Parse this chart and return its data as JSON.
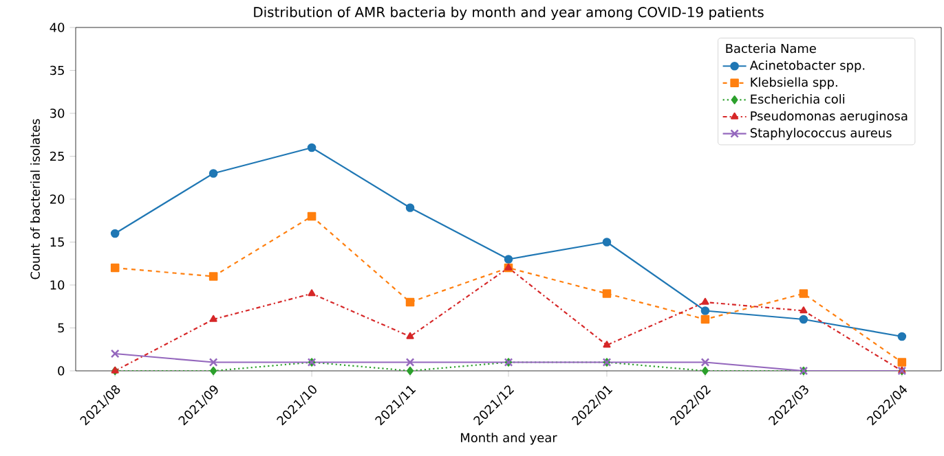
{
  "chart_data": {
    "type": "line",
    "title": "Distribution of AMR bacteria by month and year among COVID-19 patients",
    "xlabel": "Month and year",
    "ylabel": "Count of bacterial isolates",
    "legend_title": "Bacteria Name",
    "legend": "top right",
    "categories": [
      "2021/08",
      "2021/09",
      "2021/10",
      "2021/11",
      "2021/12",
      "2022/01",
      "2022/02",
      "2022/03",
      "2022/04"
    ],
    "ylim": [
      0,
      40
    ],
    "yticks": [
      0,
      5,
      10,
      15,
      20,
      25,
      30,
      35,
      40
    ],
    "series": [
      {
        "name": "Acinetobacter spp.",
        "color": "#1f77b4",
        "marker": "circle",
        "line_style": "solid",
        "values": [
          16,
          23,
          26,
          19,
          13,
          15,
          7,
          6,
          4
        ]
      },
      {
        "name": "Klebsiella spp.",
        "color": "#ff7f0e",
        "marker": "square",
        "line_style": "dashed",
        "values": [
          12,
          11,
          18,
          8,
          12,
          9,
          6,
          9,
          1
        ]
      },
      {
        "name": "Escherichia coli",
        "color": "#2ca02c",
        "marker": "diamond",
        "line_style": "dotted",
        "values": [
          0,
          0,
          1,
          0,
          1,
          1,
          0,
          0,
          0
        ]
      },
      {
        "name": "Pseudomonas aeruginosa",
        "color": "#d62728",
        "marker": "triangle",
        "line_style": "dashdot",
        "values": [
          0,
          6,
          9,
          4,
          12,
          3,
          8,
          7,
          0
        ]
      },
      {
        "name": "Staphylococcus aureus",
        "color": "#9467bd",
        "marker": "cross",
        "line_style": "solid",
        "values": [
          2,
          1,
          1,
          1,
          1,
          1,
          1,
          0,
          0
        ]
      }
    ]
  }
}
